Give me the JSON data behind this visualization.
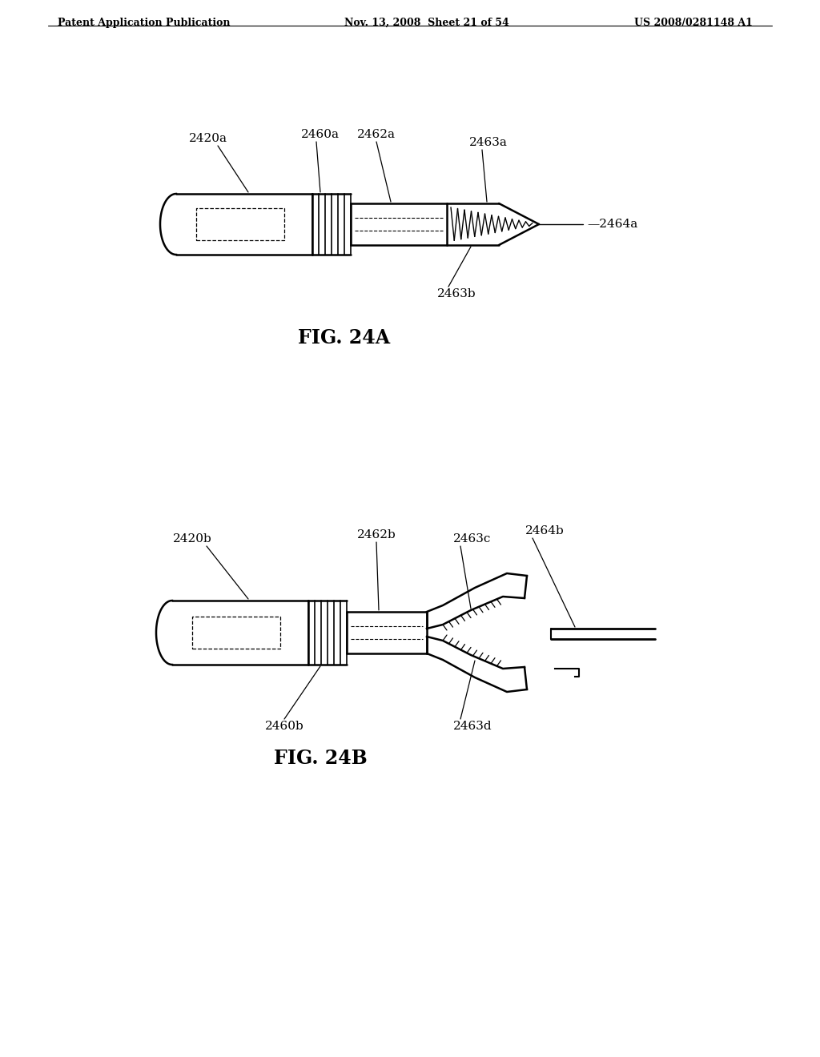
{
  "bg_color": "#ffffff",
  "text_color": "#000000",
  "header_left": "Patent Application Publication",
  "header_mid": "Nov. 13, 2008  Sheet 21 of 54",
  "header_right": "US 2008/0281148 A1",
  "fig_a_label": "FIG. 24A",
  "fig_b_label": "FIG. 24B",
  "line_color": "#000000",
  "line_width": 1.8,
  "label_fontsize": 11,
  "fig_label_fontsize": 17
}
